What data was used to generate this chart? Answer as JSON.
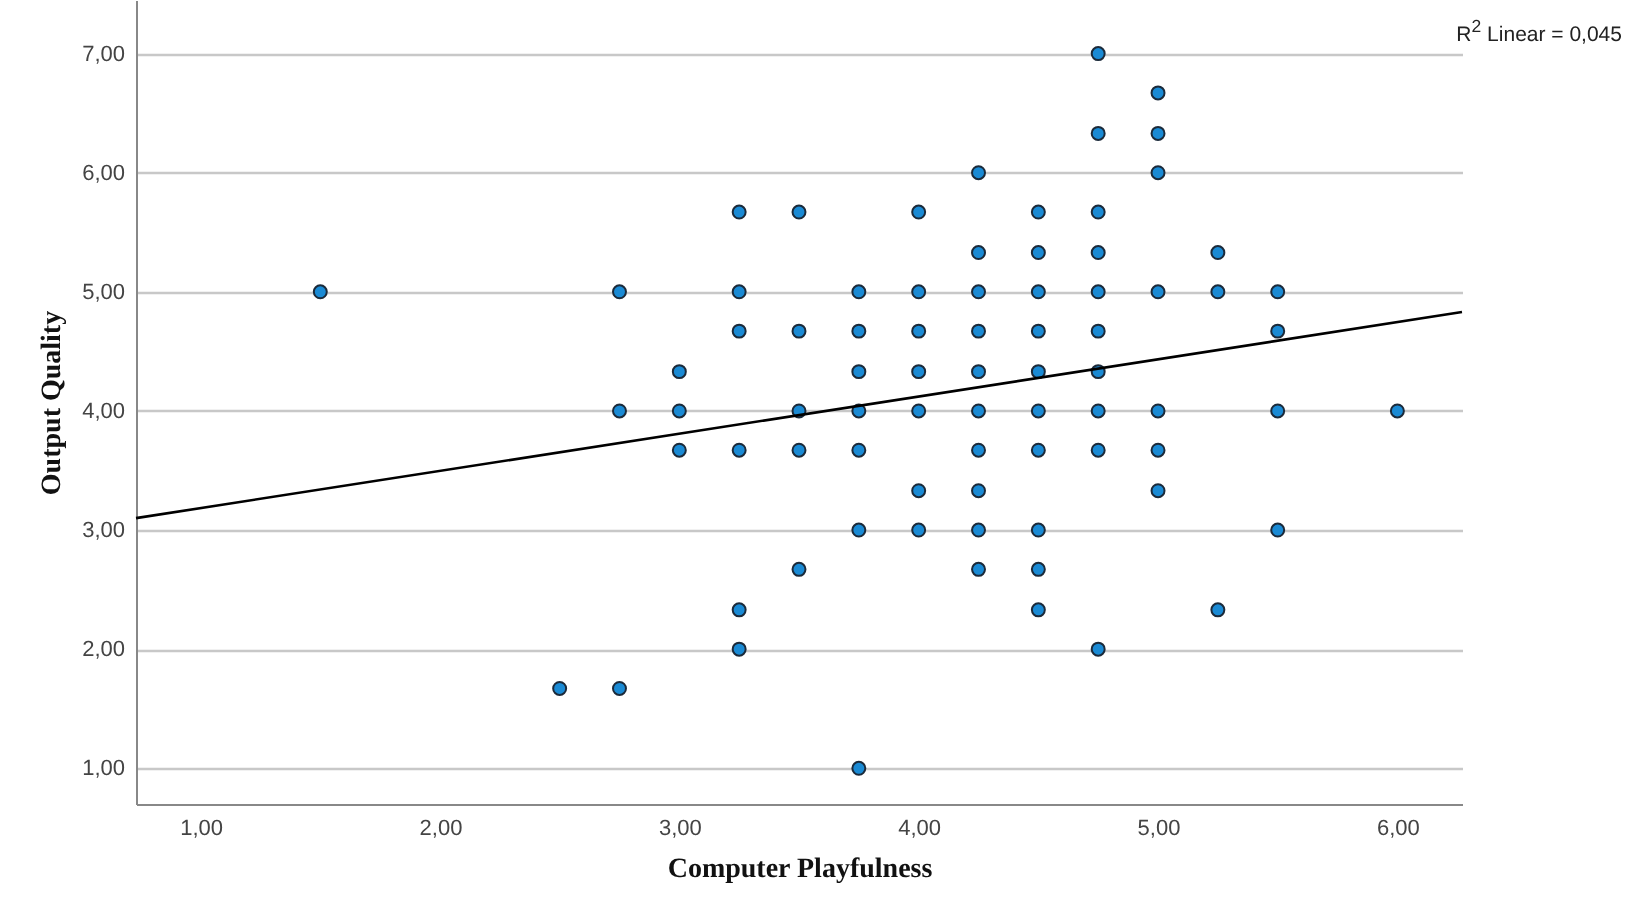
{
  "chart_data": {
    "type": "scatter",
    "xlabel": "Computer Playfulness",
    "ylabel": "Output Quality",
    "annotations": [
      "R$^{2}$ Linear = 0,045"
    ],
    "xlim": [
      0.73,
      6.27
    ],
    "ylim": [
      0.7,
      7.45
    ],
    "xticks": [
      {
        "value": 1,
        "label": "1,00"
      },
      {
        "value": 2,
        "label": "2,00"
      },
      {
        "value": 3,
        "label": "3,00"
      },
      {
        "value": 4,
        "label": "4,00"
      },
      {
        "value": 5,
        "label": "5,00"
      },
      {
        "value": 6,
        "label": "6,00"
      }
    ],
    "yticks": [
      {
        "value": 1,
        "label": "1,00"
      },
      {
        "value": 2,
        "label": "2,00"
      },
      {
        "value": 3,
        "label": "3,00"
      },
      {
        "value": 4,
        "label": "4,00"
      },
      {
        "value": 5,
        "label": "5,00"
      },
      {
        "value": 6,
        "label": "6,00"
      },
      {
        "value": 7,
        "label": "7,00"
      }
    ],
    "grid": "y",
    "series": [
      {
        "type": "scatter",
        "marker": "circle",
        "color": "#1a8ad4",
        "x": [
          1.5,
          2.5,
          2.75,
          2.75,
          2.75,
          3,
          3,
          3,
          3.25,
          3.25,
          3.25,
          3.25,
          3.25,
          3.25,
          3.5,
          3.5,
          3.5,
          3.5,
          3.5,
          3.75,
          3.75,
          3.75,
          3.75,
          3.75,
          3.75,
          3.75,
          4,
          4,
          4,
          4,
          4,
          4,
          4,
          4.25,
          4.25,
          4.25,
          4.25,
          4.25,
          4.25,
          4.25,
          4.25,
          4.25,
          4.25,
          4.5,
          4.5,
          4.5,
          4.5,
          4.5,
          4.5,
          4.5,
          4.5,
          4.5,
          4.5,
          4.75,
          4.75,
          4.75,
          4.75,
          4.75,
          4.75,
          4.75,
          4.75,
          4.75,
          4.75,
          5,
          5,
          5,
          5,
          5,
          5,
          5,
          5.25,
          5.25,
          5.25,
          5.5,
          5.5,
          5.5,
          5.5,
          6
        ],
        "values": [
          5,
          1.67,
          5,
          4,
          1.67,
          4.33,
          4,
          3.67,
          5.67,
          5,
          4.67,
          3.67,
          2.33,
          2,
          5.67,
          4.67,
          4,
          3.67,
          2.67,
          5,
          4.67,
          4.33,
          4,
          3.67,
          3,
          1,
          5.67,
          5,
          4.67,
          4.33,
          4,
          3.33,
          3,
          6,
          5.33,
          5,
          4.67,
          4.33,
          4,
          3.67,
          3.33,
          3,
          2.67,
          5.67,
          5.33,
          5,
          4.67,
          4.33,
          4,
          3.67,
          3,
          2.67,
          2.33,
          7,
          6.33,
          5.67,
          5.33,
          5,
          4.67,
          4.33,
          4,
          3.67,
          2,
          6.67,
          6.33,
          6,
          5,
          4,
          3.67,
          3.33,
          5.33,
          5,
          2.33,
          5,
          4.67,
          4,
          3,
          4
        ]
      },
      {
        "type": "line",
        "color": "#000000",
        "x": [
          0.73,
          6.27
        ],
        "values": [
          3.1,
          4.83
        ]
      }
    ]
  }
}
